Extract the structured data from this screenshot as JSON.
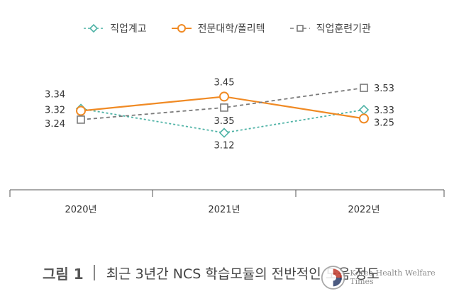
{
  "chart_data": {
    "type": "line",
    "categories": [
      "2020년",
      "2021년",
      "2022년"
    ],
    "series": [
      {
        "name": "직업계고",
        "values": [
          3.34,
          3.12,
          3.33
        ],
        "color": "#4fb3a6",
        "style": "dotted",
        "marker": "diamond"
      },
      {
        "name": "전문대학/폴리텍",
        "values": [
          3.32,
          3.45,
          3.25
        ],
        "color": "#f08a24",
        "style": "solid",
        "marker": "circle"
      },
      {
        "name": "직업훈련기관",
        "values": [
          3.24,
          3.35,
          3.53
        ],
        "color": "#7a7a7a",
        "style": "dashed",
        "marker": "square"
      }
    ],
    "ylim": [
      2.6,
      3.75
    ],
    "grid": false,
    "legend_position": "top-center",
    "xlabel": "",
    "ylabel": ""
  },
  "caption": {
    "label": "그림 1",
    "title": "최근 3년간 NCS 학습모듈의 전반적인 도움 정도"
  },
  "watermark": {
    "text": "Korea Health Welfare Times"
  }
}
